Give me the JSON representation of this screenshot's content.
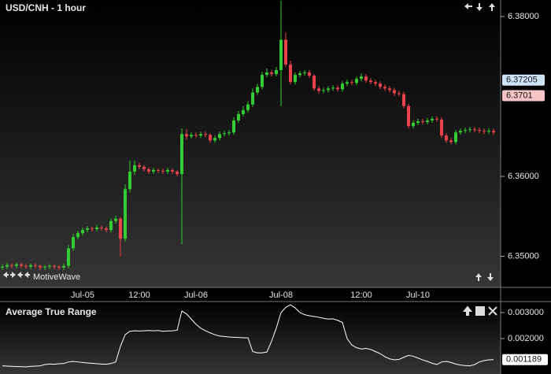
{
  "chart_data": [
    {
      "type": "candlestick",
      "title": "USD/CNH - 1 hour",
      "brand": "MotiveWave",
      "categories": [
        null,
        null,
        null,
        null,
        null,
        null,
        null,
        null,
        null,
        null,
        null,
        null,
        null,
        null,
        null,
        null,
        null,
        "Jul-05",
        null,
        null,
        null,
        null,
        null,
        null,
        null,
        null,
        null,
        null,
        null,
        "12:00",
        null,
        null,
        null,
        null,
        null,
        null,
        null,
        null,
        null,
        null,
        null,
        "Jul-06",
        null,
        null,
        null,
        null,
        null,
        null,
        null,
        null,
        null,
        null,
        null,
        null,
        null,
        null,
        null,
        null,
        null,
        "Jul-08",
        null,
        null,
        null,
        null,
        null,
        null,
        null,
        null,
        null,
        null,
        null,
        null,
        null,
        null,
        null,
        null,
        "12:00",
        null,
        null,
        null,
        null,
        null,
        null,
        null,
        null,
        null,
        null,
        null,
        "Jul-10",
        null,
        null,
        null,
        null,
        null,
        null,
        null,
        null,
        null,
        null,
        null,
        null,
        null,
        null,
        null,
        null
      ],
      "open": [
        6.3486,
        6.3487,
        6.3489,
        6.3488,
        6.349,
        6.3488,
        6.3487,
        6.3489,
        6.3488,
        6.3486,
        6.3487,
        6.3488,
        6.3487,
        6.3486,
        6.3488,
        6.351,
        6.3524,
        6.3529,
        6.3533,
        6.3535,
        6.3534,
        6.3536,
        6.3535,
        6.3533,
        6.3544,
        6.3547,
        6.3522,
        6.3584,
        6.3606,
        6.3614,
        6.3612,
        6.3609,
        6.3606,
        6.3608,
        6.3607,
        6.3606,
        6.3608,
        6.3606,
        6.3603,
        6.3653,
        6.365,
        6.3652,
        6.3651,
        6.3653,
        6.3652,
        6.3645,
        6.3648,
        6.3653,
        6.3654,
        6.3655,
        6.367,
        6.3678,
        6.3683,
        6.369,
        6.3705,
        6.3712,
        6.3727,
        6.373,
        6.3728,
        6.3733,
        6.3771,
        6.374,
        6.3718,
        6.3727,
        6.3729,
        6.373,
        6.3726,
        6.371,
        6.3707,
        6.3708,
        6.371,
        6.3711,
        6.3709,
        6.3716,
        6.3718,
        6.3717,
        6.3722,
        6.3725,
        6.372,
        6.3718,
        6.3716,
        6.3712,
        6.371,
        6.3708,
        6.3704,
        6.3703,
        6.3688,
        6.3663,
        6.3667,
        6.3669,
        6.3668,
        6.367,
        6.3672,
        6.3671,
        6.3651,
        6.3645,
        6.3643,
        6.3655,
        6.3657,
        6.3658,
        6.3659,
        6.3658,
        6.3657,
        6.3656,
        6.3657
      ],
      "high": [
        6.349,
        6.3492,
        6.3491,
        6.3492,
        6.3492,
        6.349,
        6.3491,
        6.3491,
        6.349,
        6.3489,
        6.349,
        6.349,
        6.3489,
        6.3491,
        6.3514,
        6.3528,
        6.3532,
        6.3536,
        6.3538,
        6.3537,
        6.3539,
        6.3538,
        6.3537,
        6.3547,
        6.3551,
        6.3549,
        6.359,
        6.362,
        6.362,
        6.3617,
        6.3614,
        6.3611,
        6.3611,
        6.361,
        6.361,
        6.3611,
        6.361,
        6.3608,
        6.366,
        6.3659,
        6.3655,
        6.3655,
        6.3656,
        6.3656,
        6.3654,
        6.3651,
        6.3656,
        6.3657,
        6.3658,
        6.3674,
        6.3682,
        6.3688,
        6.3694,
        6.371,
        6.3716,
        6.3731,
        6.3735,
        6.3733,
        6.3737,
        6.382,
        6.378,
        6.3745,
        6.373,
        6.3732,
        6.3733,
        6.3733,
        6.3728,
        6.3713,
        6.3711,
        6.3713,
        6.3714,
        6.3714,
        6.3719,
        6.3721,
        6.3721,
        6.3725,
        6.3729,
        6.3728,
        6.3723,
        6.3721,
        6.3719,
        6.3715,
        6.3713,
        6.3711,
        6.3707,
        6.3706,
        6.3691,
        6.367,
        6.3672,
        6.3672,
        6.3673,
        6.3675,
        6.3675,
        6.3674,
        6.3654,
        6.3648,
        6.3658,
        6.366,
        6.3661,
        6.3662,
        6.3662,
        6.3661,
        6.366,
        6.366,
        6.366
      ],
      "low": [
        6.3483,
        6.3484,
        6.3485,
        6.3485,
        6.3485,
        6.3484,
        6.3484,
        6.3485,
        6.3483,
        6.3483,
        6.3484,
        6.3484,
        6.3483,
        6.3483,
        6.3485,
        6.3507,
        6.3521,
        6.3526,
        6.353,
        6.3531,
        6.3531,
        6.3532,
        6.353,
        6.353,
        6.3541,
        6.35,
        6.3518,
        6.358,
        6.3602,
        6.3609,
        6.3606,
        6.3603,
        6.3603,
        6.3604,
        6.3603,
        6.3603,
        6.3603,
        6.36,
        6.3515,
        6.3646,
        6.3647,
        6.3648,
        6.3648,
        6.3649,
        6.3642,
        6.3642,
        6.3645,
        6.365,
        6.3651,
        6.3652,
        6.3667,
        6.3675,
        6.368,
        6.3687,
        6.3702,
        6.3709,
        6.3724,
        6.3725,
        6.3725,
        6.3688,
        6.3737,
        6.3715,
        6.3715,
        6.3724,
        6.3726,
        6.3723,
        6.3707,
        6.3704,
        6.3704,
        6.3705,
        6.3707,
        6.3706,
        6.3706,
        6.3713,
        6.3714,
        6.3714,
        6.3719,
        6.3717,
        6.3715,
        6.3713,
        6.3709,
        6.3707,
        6.3705,
        6.3701,
        6.37,
        6.3685,
        6.366,
        6.366,
        6.3664,
        6.3665,
        6.3665,
        6.3667,
        6.3668,
        6.3648,
        6.3642,
        6.364,
        6.364,
        6.3652,
        6.3654,
        6.3655,
        6.3655,
        6.3654,
        6.3653,
        6.3653,
        6.3652
      ],
      "close": [
        6.3487,
        6.3489,
        6.3488,
        6.349,
        6.3488,
        6.3487,
        6.3489,
        6.3488,
        6.3486,
        6.3487,
        6.3488,
        6.3487,
        6.3486,
        6.3488,
        6.351,
        6.3524,
        6.3529,
        6.3533,
        6.3535,
        6.3534,
        6.3536,
        6.3535,
        6.3533,
        6.3544,
        6.3547,
        6.3522,
        6.3584,
        6.3606,
        6.3614,
        6.3612,
        6.3609,
        6.3606,
        6.3608,
        6.3607,
        6.3606,
        6.3608,
        6.3606,
        6.3603,
        6.3653,
        6.365,
        6.3652,
        6.3651,
        6.3653,
        6.3652,
        6.3645,
        6.3648,
        6.3653,
        6.3654,
        6.3655,
        6.367,
        6.3678,
        6.3683,
        6.369,
        6.3705,
        6.3712,
        6.3727,
        6.373,
        6.3728,
        6.3733,
        6.3771,
        6.374,
        6.3718,
        6.3727,
        6.3729,
        6.373,
        6.3726,
        6.371,
        6.3707,
        6.3708,
        6.371,
        6.3711,
        6.3709,
        6.3716,
        6.3718,
        6.3717,
        6.3722,
        6.3725,
        6.372,
        6.3718,
        6.3716,
        6.3712,
        6.371,
        6.3708,
        6.3704,
        6.3703,
        6.3688,
        6.3663,
        6.3667,
        6.3669,
        6.3668,
        6.367,
        6.3672,
        6.3671,
        6.3651,
        6.3645,
        6.3643,
        6.3655,
        6.3657,
        6.3658,
        6.3659,
        6.3658,
        6.3657,
        6.3656,
        6.3657,
        6.3655
      ],
      "up_color": "#33cc33",
      "down_color": "#e8434b",
      "ylim": [
        6.34611,
        6.38207
      ],
      "yticks": [
        {
          "value": 6.35,
          "label": "6.35000"
        },
        {
          "value": 6.36,
          "label": "6.36000"
        },
        {
          "value": 6.38,
          "label": "6.38000"
        }
      ],
      "price_markers": [
        {
          "value": 6.37205,
          "color": "#cfe3f7"
        },
        {
          "value": 6.3701,
          "color": "#f5c4c6"
        }
      ]
    },
    {
      "type": "line",
      "title": "Average True Range",
      "color": "#ffffff",
      "values": [
        0.00095,
        0.00094,
        0.00093,
        0.00092,
        0.00092,
        0.00091,
        0.00093,
        0.00094,
        0.00095,
        0.001,
        0.00102,
        0.00101,
        0.00103,
        0.00104,
        0.0011,
        0.00112,
        0.0011,
        0.00108,
        0.00106,
        0.00105,
        0.00103,
        0.00102,
        0.00101,
        0.00104,
        0.0011,
        0.0017,
        0.00215,
        0.00228,
        0.0023,
        0.00229,
        0.0023,
        0.00231,
        0.0023,
        0.00231,
        0.00228,
        0.00229,
        0.0023,
        0.00232,
        0.00306,
        0.00295,
        0.00275,
        0.00255,
        0.0024,
        0.0023,
        0.00222,
        0.00215,
        0.0021,
        0.00208,
        0.00206,
        0.00205,
        0.00204,
        0.00203,
        0.00203,
        0.0015,
        0.00145,
        0.00145,
        0.00148,
        0.0019,
        0.0024,
        0.003,
        0.0032,
        0.0033,
        0.00318,
        0.003,
        0.00292,
        0.00288,
        0.00285,
        0.00282,
        0.00278,
        0.00275,
        0.00276,
        0.0027,
        0.00262,
        0.002,
        0.00175,
        0.00165,
        0.0016,
        0.00162,
        0.00158,
        0.0015,
        0.00142,
        0.0013,
        0.00122,
        0.00118,
        0.0012,
        0.00128,
        0.00135,
        0.00132,
        0.00125,
        0.00118,
        0.00112,
        0.00105,
        0.001,
        0.0011,
        0.00112,
        0.00108,
        0.00102,
        0.00098,
        0.00096,
        0.00095,
        0.001,
        0.0011,
        0.00115,
        0.00118,
        0.001189
      ],
      "ylim": [
        0.000636,
        0.003394
      ],
      "yticks": [
        {
          "value": 0.002,
          "label": "0.002000"
        },
        {
          "value": 0.003,
          "label": "0.003000"
        }
      ]
    }
  ]
}
